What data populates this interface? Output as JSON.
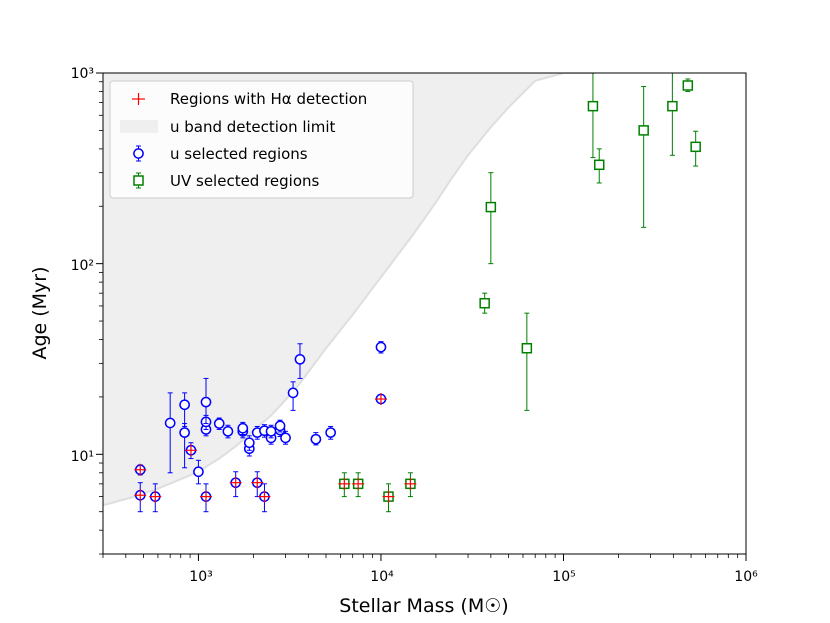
{
  "chart_data": {
    "type": "scatter",
    "xscale": "log",
    "yscale": "log",
    "xlim": [
      300,
      1000000
    ],
    "ylim": [
      3,
      1000
    ],
    "xlabel": "Stellar Mass (M☉)",
    "ylabel": "Age (Myr)",
    "x_major_ticks": [
      1000,
      10000,
      100000,
      1000000
    ],
    "x_tick_labels": [
      "10³",
      "10⁴",
      "10⁵",
      "10⁶"
    ],
    "y_major_ticks": [
      10,
      100,
      1000
    ],
    "y_tick_labels": [
      "10¹",
      "10²",
      "10³"
    ],
    "legend": {
      "position": "top-left",
      "entries": [
        "Regions with Hα detection",
        "u band detection limit",
        "u selected regions",
        "UV selected regions"
      ]
    },
    "colors": {
      "halpha": "#ff0000",
      "u_band_limit_fill": "#efefef",
      "u_band_limit_line": "#dedede",
      "u_selected": "#0000ff",
      "uv_selected": "#008000"
    },
    "u_band_detection_limit": {
      "x": [
        300,
        420,
        600,
        800,
        1000,
        1100,
        1300,
        1600,
        2000,
        2500,
        3000,
        3500,
        4000,
        5000,
        7000,
        10000,
        15000,
        20000,
        25000,
        30000,
        40000,
        50000,
        70000,
        100000,
        150000
      ],
      "y": [
        5.4,
        5.9,
        6.6,
        7.4,
        8.1,
        8.6,
        9.5,
        11,
        13.3,
        16,
        19.3,
        22.8,
        27,
        36,
        54,
        85,
        142,
        210,
        290,
        370,
        520,
        660,
        910,
        1000,
        1000
      ]
    },
    "u_selected_regions": [
      {
        "x": 480,
        "y": 8.3,
        "ylo": 7.8,
        "yhi": 8.8,
        "halpha": true
      },
      {
        "x": 480,
        "y": 6.1,
        "ylo": 5.0,
        "yhi": 7.1,
        "halpha": true
      },
      {
        "x": 580,
        "y": 6.0,
        "ylo": 5.0,
        "yhi": 7.0,
        "halpha": true
      },
      {
        "x": 700,
        "y": 14.6,
        "ylo": 8.0,
        "yhi": 21.0,
        "halpha": false
      },
      {
        "x": 840,
        "y": 13.0,
        "ylo": 8.5,
        "yhi": 14.5,
        "halpha": false
      },
      {
        "x": 840,
        "y": 18.2,
        "ylo": 14.0,
        "yhi": 21.0,
        "halpha": false
      },
      {
        "x": 910,
        "y": 10.5,
        "ylo": 9.5,
        "yhi": 11.5,
        "halpha": true
      },
      {
        "x": 1000,
        "y": 8.1,
        "ylo": 7.0,
        "yhi": 9.3,
        "halpha": false
      },
      {
        "x": 1100,
        "y": 6.0,
        "ylo": 5.0,
        "yhi": 7.0,
        "halpha": true
      },
      {
        "x": 1100,
        "y": 13.5,
        "ylo": 12.5,
        "yhi": 14.5,
        "halpha": false
      },
      {
        "x": 1100,
        "y": 14.8,
        "ylo": 13.5,
        "yhi": 16.0,
        "halpha": false
      },
      {
        "x": 1100,
        "y": 18.8,
        "ylo": 14.5,
        "yhi": 25.0,
        "halpha": false
      },
      {
        "x": 1300,
        "y": 14.5,
        "ylo": 13.5,
        "yhi": 15.5,
        "halpha": false
      },
      {
        "x": 1450,
        "y": 13.2,
        "ylo": 12.2,
        "yhi": 14.2,
        "halpha": false
      },
      {
        "x": 1600,
        "y": 7.1,
        "ylo": 6.0,
        "yhi": 8.1,
        "halpha": true
      },
      {
        "x": 1750,
        "y": 13.2,
        "ylo": 12.2,
        "yhi": 14.2,
        "halpha": false
      },
      {
        "x": 1750,
        "y": 13.7,
        "ylo": 12.7,
        "yhi": 14.7,
        "halpha": false
      },
      {
        "x": 1900,
        "y": 10.7,
        "ylo": 9.8,
        "yhi": 11.6,
        "halpha": false
      },
      {
        "x": 1900,
        "y": 11.5,
        "ylo": 10.5,
        "yhi": 12.5,
        "halpha": false
      },
      {
        "x": 2100,
        "y": 7.1,
        "ylo": 6.0,
        "yhi": 8.1,
        "halpha": true
      },
      {
        "x": 2100,
        "y": 13.0,
        "ylo": 12.0,
        "yhi": 14.0,
        "halpha": false
      },
      {
        "x": 2300,
        "y": 6.0,
        "ylo": 5.0,
        "yhi": 7.0,
        "halpha": true
      },
      {
        "x": 2300,
        "y": 13.3,
        "ylo": 12.3,
        "yhi": 14.3,
        "halpha": false
      },
      {
        "x": 2500,
        "y": 12.2,
        "ylo": 11.3,
        "yhi": 13.2,
        "halpha": false
      },
      {
        "x": 2500,
        "y": 13.2,
        "ylo": 12.2,
        "yhi": 14.2,
        "halpha": false
      },
      {
        "x": 2800,
        "y": 13.4,
        "ylo": 12.4,
        "yhi": 14.4,
        "halpha": false
      },
      {
        "x": 2800,
        "y": 14.1,
        "ylo": 13.1,
        "yhi": 15.1,
        "halpha": false
      },
      {
        "x": 3000,
        "y": 12.2,
        "ylo": 11.3,
        "yhi": 13.2,
        "halpha": false
      },
      {
        "x": 3300,
        "y": 21.0,
        "ylo": 17.0,
        "yhi": 24.0,
        "halpha": false
      },
      {
        "x": 3600,
        "y": 31.5,
        "ylo": 25.0,
        "yhi": 38.0,
        "halpha": false
      },
      {
        "x": 4400,
        "y": 12.0,
        "ylo": 11.2,
        "yhi": 13.0,
        "halpha": false
      },
      {
        "x": 5300,
        "y": 13.0,
        "ylo": 12.0,
        "yhi": 14.0,
        "halpha": false
      },
      {
        "x": 10000,
        "y": 36.5,
        "ylo": 34.0,
        "yhi": 39.0,
        "halpha": false
      },
      {
        "x": 10000,
        "y": 19.5,
        "ylo": 18.5,
        "yhi": 20.5,
        "halpha": true
      }
    ],
    "uv_selected_regions": [
      {
        "x": 6300,
        "y": 7.0,
        "ylo": 6.0,
        "yhi": 8.0,
        "halpha": true
      },
      {
        "x": 7500,
        "y": 7.0,
        "ylo": 6.0,
        "yhi": 8.0,
        "halpha": true
      },
      {
        "x": 11000,
        "y": 6.0,
        "ylo": 5.0,
        "yhi": 7.0,
        "halpha": true
      },
      {
        "x": 14500,
        "y": 7.0,
        "ylo": 6.0,
        "yhi": 8.0,
        "halpha": true
      },
      {
        "x": 37000,
        "y": 62,
        "ylo": 55,
        "yhi": 70,
        "halpha": false
      },
      {
        "x": 40000,
        "y": 198,
        "ylo": 100,
        "yhi": 300,
        "halpha": false
      },
      {
        "x": 63000,
        "y": 36,
        "ylo": 17,
        "yhi": 55,
        "halpha": false
      },
      {
        "x": 145000,
        "y": 670,
        "ylo": 360,
        "yhi": 1000,
        "halpha": false
      },
      {
        "x": 157000,
        "y": 330,
        "ylo": 265,
        "yhi": 400,
        "halpha": false
      },
      {
        "x": 275000,
        "y": 500,
        "ylo": 155,
        "yhi": 850,
        "halpha": false
      },
      {
        "x": 395000,
        "y": 670,
        "ylo": 370,
        "yhi": 1000,
        "halpha": false
      },
      {
        "x": 480000,
        "y": 860,
        "ylo": 800,
        "yhi": 930,
        "halpha": false
      },
      {
        "x": 530000,
        "y": 410,
        "ylo": 325,
        "yhi": 495,
        "halpha": false
      }
    ]
  }
}
